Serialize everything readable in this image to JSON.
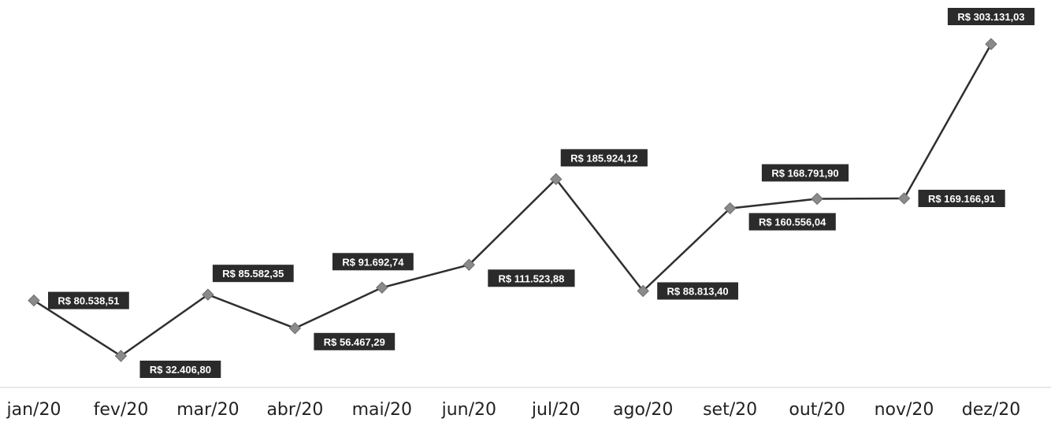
{
  "chart_data": {
    "type": "line",
    "categories": [
      "jan/20",
      "fev/20",
      "mar/20",
      "abr/20",
      "mai/20",
      "jun/20",
      "jul/20",
      "ago/20",
      "set/20",
      "out/20",
      "nov/20",
      "dez/20"
    ],
    "values": [
      80538.51,
      32406.8,
      85582.35,
      56467.29,
      91692.74,
      111523.88,
      185924.12,
      88813.4,
      160556.04,
      168791.9,
      169166.91,
      303131.03
    ],
    "data_labels": [
      "R$ 80.538,51",
      "R$ 32.406,80",
      "R$ 85.582,35",
      "R$ 56.467,29",
      "R$ 91.692,74",
      "R$ 111.523,88",
      "R$ 185.924,12",
      "R$ 88.813,40",
      "R$ 160.556,04",
      "R$ 168.791,90",
      "R$ 169.166,91",
      "R$ 303.131,03"
    ],
    "label_positions": [
      "right",
      "below-right",
      "above-right",
      "below-right",
      "above-left",
      "below-right",
      "above-right",
      "right",
      "below-right",
      "above-left",
      "right",
      "above"
    ],
    "title": "",
    "xlabel": "",
    "ylabel": "",
    "grid": false,
    "legend": "none",
    "colors": {
      "line": "#2f2f2f",
      "marker": "#8a8a8a",
      "label_bg": "#2b2b2b",
      "label_text": "#ffffff",
      "axis": "#d0d0d0"
    }
  }
}
